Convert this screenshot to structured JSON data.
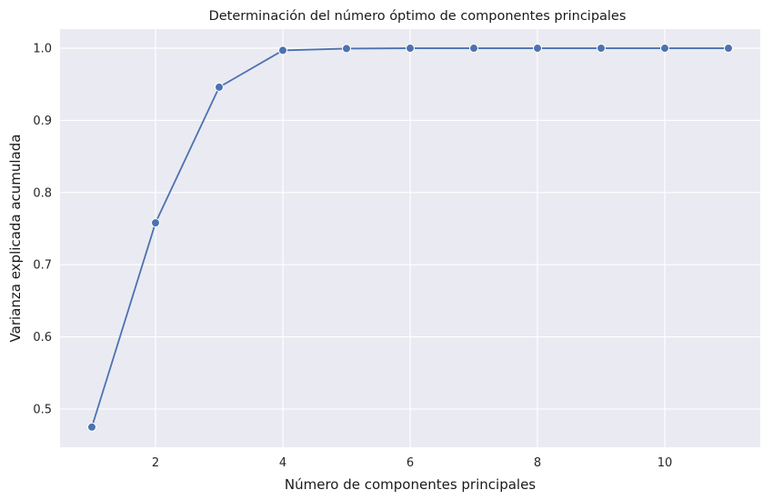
{
  "chart_data": {
    "type": "line",
    "title": "Determinación del número óptimo de componentes principales",
    "xlabel": "Número de componentes principales",
    "ylabel": "Varianza explicada acumulada",
    "x": [
      1,
      2,
      3,
      4,
      5,
      6,
      7,
      8,
      9,
      10,
      11
    ],
    "series": [
      {
        "values": [
          0.475,
          0.758,
          0.946,
          0.997,
          0.9995,
          1.0,
          1.0,
          1.0,
          1.0,
          1.0,
          1.0
        ]
      }
    ],
    "xlim": [
      0.5,
      11.5
    ],
    "ylim": [
      0.447,
      1.0265
    ],
    "xticks": [
      2,
      4,
      6,
      8,
      10
    ],
    "yticks": [
      0.5,
      0.6,
      0.7,
      0.8,
      0.9,
      1.0
    ],
    "xtick_labels": [
      "2",
      "4",
      "6",
      "8",
      "10"
    ],
    "ytick_labels": [
      "0.5",
      "0.6",
      "0.7",
      "0.8",
      "0.9",
      "1.0"
    ],
    "grid": true,
    "markers": true,
    "colors": {
      "line": "#4c72b0",
      "background": "#eaeaf2",
      "grid": "#ffffff"
    }
  }
}
